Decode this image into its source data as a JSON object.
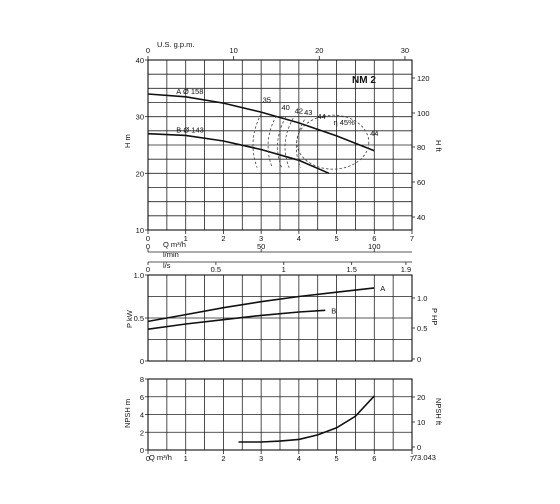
{
  "chart_data": [
    {
      "type": "line",
      "title": "NM 2",
      "panel": "head",
      "xlabel": "Q m³/h",
      "ylabel": "H m",
      "ylabel_right": "H ft",
      "xlim": [
        0,
        7
      ],
      "ylim": [
        10,
        40
      ],
      "y_ticks": [
        10,
        20,
        30,
        40
      ],
      "y2_ticks": [
        "40",
        "60",
        "80",
        "100",
        "120"
      ],
      "x_ticks": [
        "0",
        "1",
        "2",
        "3",
        "4",
        "5",
        "6",
        "7"
      ],
      "top_axis_label": "U.S. g.p.m.",
      "top_axis_ticks": [
        "0",
        "10",
        "20",
        "30"
      ],
      "lmin_label": "l/min",
      "lmin_ticks": [
        "0",
        "50",
        "100"
      ],
      "ls_label": "l/s",
      "ls_ticks": [
        "0",
        "0.5",
        "1",
        "1.5",
        "1.9"
      ],
      "series": [
        {
          "name": "A Ø 158",
          "x": [
            0,
            1,
            2,
            3,
            4,
            5,
            6
          ],
          "y": [
            34,
            33.5,
            32.4,
            30.8,
            28.9,
            26.6,
            24
          ]
        },
        {
          "name": "B Ø 143",
          "x": [
            0,
            1,
            2,
            3,
            4,
            4.8
          ],
          "y": [
            27,
            26.7,
            25.7,
            24.2,
            22.3,
            20
          ]
        }
      ],
      "efficiency_labels": [
        "35",
        "40",
        "42",
        "43",
        "44",
        "η 45%",
        "44"
      ],
      "grid": true
    },
    {
      "type": "line",
      "panel": "power",
      "ylabel": "P kW",
      "ylabel_right": "P HP",
      "xlim": [
        0,
        7
      ],
      "ylim": [
        0,
        1
      ],
      "y_ticks": [
        "0",
        "0.5",
        "1.0"
      ],
      "y2_ticks": [
        "0",
        "0.5",
        "1.0"
      ],
      "series": [
        {
          "name": "A",
          "x": [
            0,
            1,
            2,
            3,
            4,
            5,
            6
          ],
          "y": [
            0.46,
            0.54,
            0.62,
            0.69,
            0.75,
            0.8,
            0.85
          ]
        },
        {
          "name": "B",
          "x": [
            0,
            1,
            2,
            3,
            4,
            4.7
          ],
          "y": [
            0.37,
            0.43,
            0.48,
            0.53,
            0.57,
            0.59
          ]
        }
      ],
      "grid": true
    },
    {
      "type": "line",
      "panel": "npsh",
      "xlabel": "Q m³/h",
      "ylabel": "NPSH m",
      "ylabel_right": "NPSH ft",
      "xlim": [
        0,
        7
      ],
      "ylim": [
        0,
        8
      ],
      "y_ticks": [
        "0",
        "2",
        "4",
        "6",
        "8"
      ],
      "y2_ticks": [
        "0",
        "10",
        "20"
      ],
      "x_ticks": [
        "0",
        "1",
        "2",
        "3",
        "4",
        "5",
        "6",
        "7"
      ],
      "series": [
        {
          "name": "NPSH",
          "x": [
            2.4,
            3,
            3.5,
            4,
            4.5,
            5,
            5.5,
            6
          ],
          "y": [
            0.9,
            0.9,
            1,
            1.2,
            1.7,
            2.5,
            3.8,
            6.1
          ]
        }
      ],
      "grid": true
    }
  ],
  "code_label": "73.043"
}
